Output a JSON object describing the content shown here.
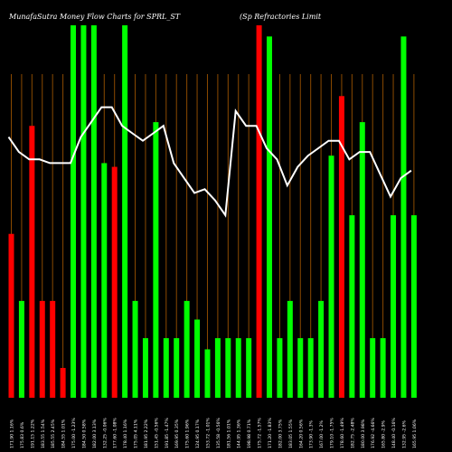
{
  "header": {
    "left": "MunafaSutra  Money Flow  Charts for SPRL_ST",
    "right": "(Sp Refractories Limit"
  },
  "chart_data": {
    "type": "bar",
    "description_series": [
      "money flow bars",
      "price line"
    ],
    "colors": {
      "up": "#00ff00",
      "down": "#ff0000",
      "line": "#ffffff",
      "grid": "#8b4a00",
      "background": "#000000"
    },
    "ylim": [
      0,
      100
    ],
    "bars": [
      {
        "dir": "down",
        "value": 44
      },
      {
        "dir": "up",
        "value": 26
      },
      {
        "dir": "down",
        "value": 73
      },
      {
        "dir": "down",
        "value": 26
      },
      {
        "dir": "down",
        "value": 26
      },
      {
        "dir": "down",
        "value": 8
      },
      {
        "dir": "up",
        "value": 100
      },
      {
        "dir": "up",
        "value": 100
      },
      {
        "dir": "up",
        "value": 100
      },
      {
        "dir": "up",
        "value": 63
      },
      {
        "dir": "down",
        "value": 62
      },
      {
        "dir": "up",
        "value": 100
      },
      {
        "dir": "up",
        "value": 26
      },
      {
        "dir": "up",
        "value": 16
      },
      {
        "dir": "up",
        "value": 74
      },
      {
        "dir": "up",
        "value": 16
      },
      {
        "dir": "up",
        "value": 16
      },
      {
        "dir": "up",
        "value": 26
      },
      {
        "dir": "up",
        "value": 21
      },
      {
        "dir": "up",
        "value": 13
      },
      {
        "dir": "up",
        "value": 16
      },
      {
        "dir": "up",
        "value": 16
      },
      {
        "dir": "up",
        "value": 16
      },
      {
        "dir": "up",
        "value": 16
      },
      {
        "dir": "down",
        "value": 100
      },
      {
        "dir": "up",
        "value": 97
      },
      {
        "dir": "up",
        "value": 16
      },
      {
        "dir": "up",
        "value": 26
      },
      {
        "dir": "up",
        "value": 16
      },
      {
        "dir": "up",
        "value": 16
      },
      {
        "dir": "up",
        "value": 26
      },
      {
        "dir": "up",
        "value": 65
      },
      {
        "dir": "down",
        "value": 81
      },
      {
        "dir": "up",
        "value": 49
      },
      {
        "dir": "up",
        "value": 74
      },
      {
        "dir": "up",
        "value": 16
      },
      {
        "dir": "up",
        "value": 16
      },
      {
        "dir": "up",
        "value": 49
      },
      {
        "dir": "up",
        "value": 97
      },
      {
        "dir": "up",
        "value": 49
      }
    ],
    "line": [
      70,
      66,
      64,
      64,
      63,
      63,
      63,
      70,
      74,
      78,
      78,
      73,
      71,
      69,
      71,
      73,
      63,
      59,
      55,
      56,
      53,
      49,
      77,
      73,
      73,
      67,
      64,
      57,
      62,
      65,
      67,
      69,
      69,
      64,
      66,
      66,
      60,
      54,
      59,
      61
    ],
    "xtick_labels": [
      "171.90 1.16%",
      "175.83 0.6%",
      "191.15 1.22%",
      "183.55 1.54%",
      "185.55 2.45%",
      "184.55 1.01%",
      "175.00 -1.23%",
      "184.50 0.58%",
      "182.00 3.13%",
      "132.25 -0.06%",
      "177.60 -1.08%",
      "178.40 1.16%",
      "175.05 4.11%",
      "181.95 2.22%",
      "151.45 -0.56%",
      "191.85 -1.47%",
      "169.95 0.35%",
      "175.60 1.96%",
      "124.95 0.17%",
      "153.72 -1.01%",
      "135.58 -0.56%",
      "181.56 1.01%",
      "144.95 1.36%",
      "198.98 0.71%",
      "175.72 -1.57%",
      "171.20 -1.83%",
      "182.00 3.75%",
      "183.05 1.55%",
      "164.20 0.56%",
      "173.90 -1.3%",
      "167.00 -1.2%",
      "179.10 -1.75%",
      "178.60 -1.49%",
      "182.75 -2.48%",
      "180.00 3.98%",
      "176.92 -4.66%",
      "165.80 -2.9%",
      "148.40 -0.16%",
      "132.95 -2.6%",
      "165.95 1.06%"
    ]
  }
}
